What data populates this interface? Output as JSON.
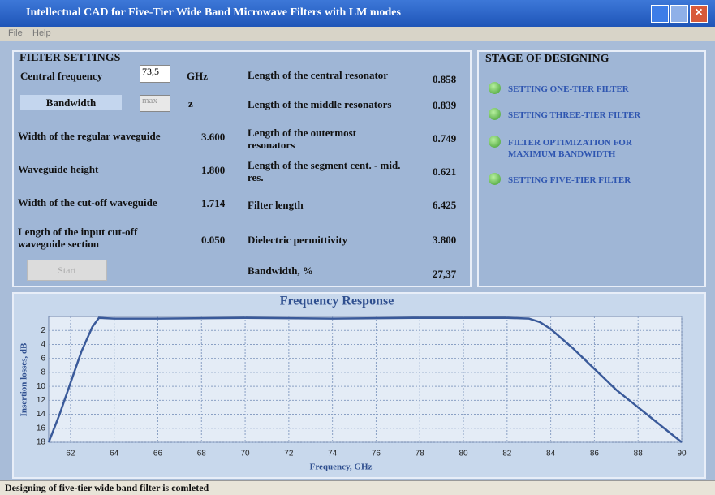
{
  "window": {
    "title": "Intellectual CAD for Five-Tier Wide Band Microwave Filters with LM modes"
  },
  "menu": [
    "File",
    "Help"
  ],
  "filter_settings": {
    "title": "FILTER SETTINGS",
    "central_frequency": {
      "label": "Central frequency",
      "input": "73,5",
      "unit": "GHz"
    },
    "bandwidth": {
      "label": "Bandwidth",
      "input": "max",
      "unit": "z"
    },
    "left": [
      {
        "label": "Width of the regular waveguide",
        "value": "3.600"
      },
      {
        "label": "Waveguide height",
        "value": "1.800"
      },
      {
        "label": "Width of the cut-off waveguide",
        "value": "1.714"
      },
      {
        "label": "Length of the input cut-off waveguide section",
        "value": "0.050"
      }
    ],
    "right": [
      {
        "label": "Length of the central resonator",
        "value": "0.858"
      },
      {
        "label": "Length of the middle resonators",
        "value": "0.839"
      },
      {
        "label": "Length of the outermost resonators",
        "value": "0.749"
      },
      {
        "label": "Length of the segment cent. - mid. res.",
        "value": "0.621"
      },
      {
        "label": "Filter length",
        "value": "6.425"
      },
      {
        "label": "Dielectric permittivity",
        "value": "3.800"
      },
      {
        "label": "Bandwidth, %",
        "value": "27,37"
      }
    ],
    "button": "Start"
  },
  "stage": {
    "title": "STAGE OF DESIGNING",
    "steps": [
      "SETTING ONE-TIER FILTER",
      "SETTING THREE-TIER FILTER",
      "FILTER OPTIMIZATION FOR MAXIMUM BANDWIDTH",
      "SETTING FIVE-TIER FILTER"
    ]
  },
  "chart_data": {
    "type": "line",
    "title": "Frequency Response",
    "x_label": "Frequency, GHz",
    "y_label": "Insertion losses, dB",
    "x": [
      61,
      61.5,
      62,
      62.5,
      63,
      63.3,
      64,
      66,
      70,
      74,
      78,
      82,
      83,
      83.5,
      84,
      85,
      86,
      87,
      88,
      89,
      90
    ],
    "series": [
      {
        "color": "#3a5a9a",
        "values": [
          18,
          14,
          9.5,
          5,
          1.5,
          0.2,
          0.3,
          0.3,
          0.2,
          0.3,
          0.2,
          0.2,
          0.3,
          0.8,
          1.8,
          4.5,
          7.5,
          10.5,
          13,
          15.5,
          18
        ]
      }
    ],
    "xlim": [
      61,
      90
    ],
    "xticks": [
      62,
      64,
      66,
      68,
      70,
      72,
      74,
      76,
      78,
      80,
      82,
      84,
      86,
      88,
      90
    ],
    "ylim": [
      0,
      18
    ],
    "yticks": [
      2,
      4,
      6,
      8,
      10,
      12,
      14,
      16,
      18
    ],
    "y_inverted": true,
    "grid": true
  },
  "status": "Designing of five-tier wide band filter is comleted"
}
